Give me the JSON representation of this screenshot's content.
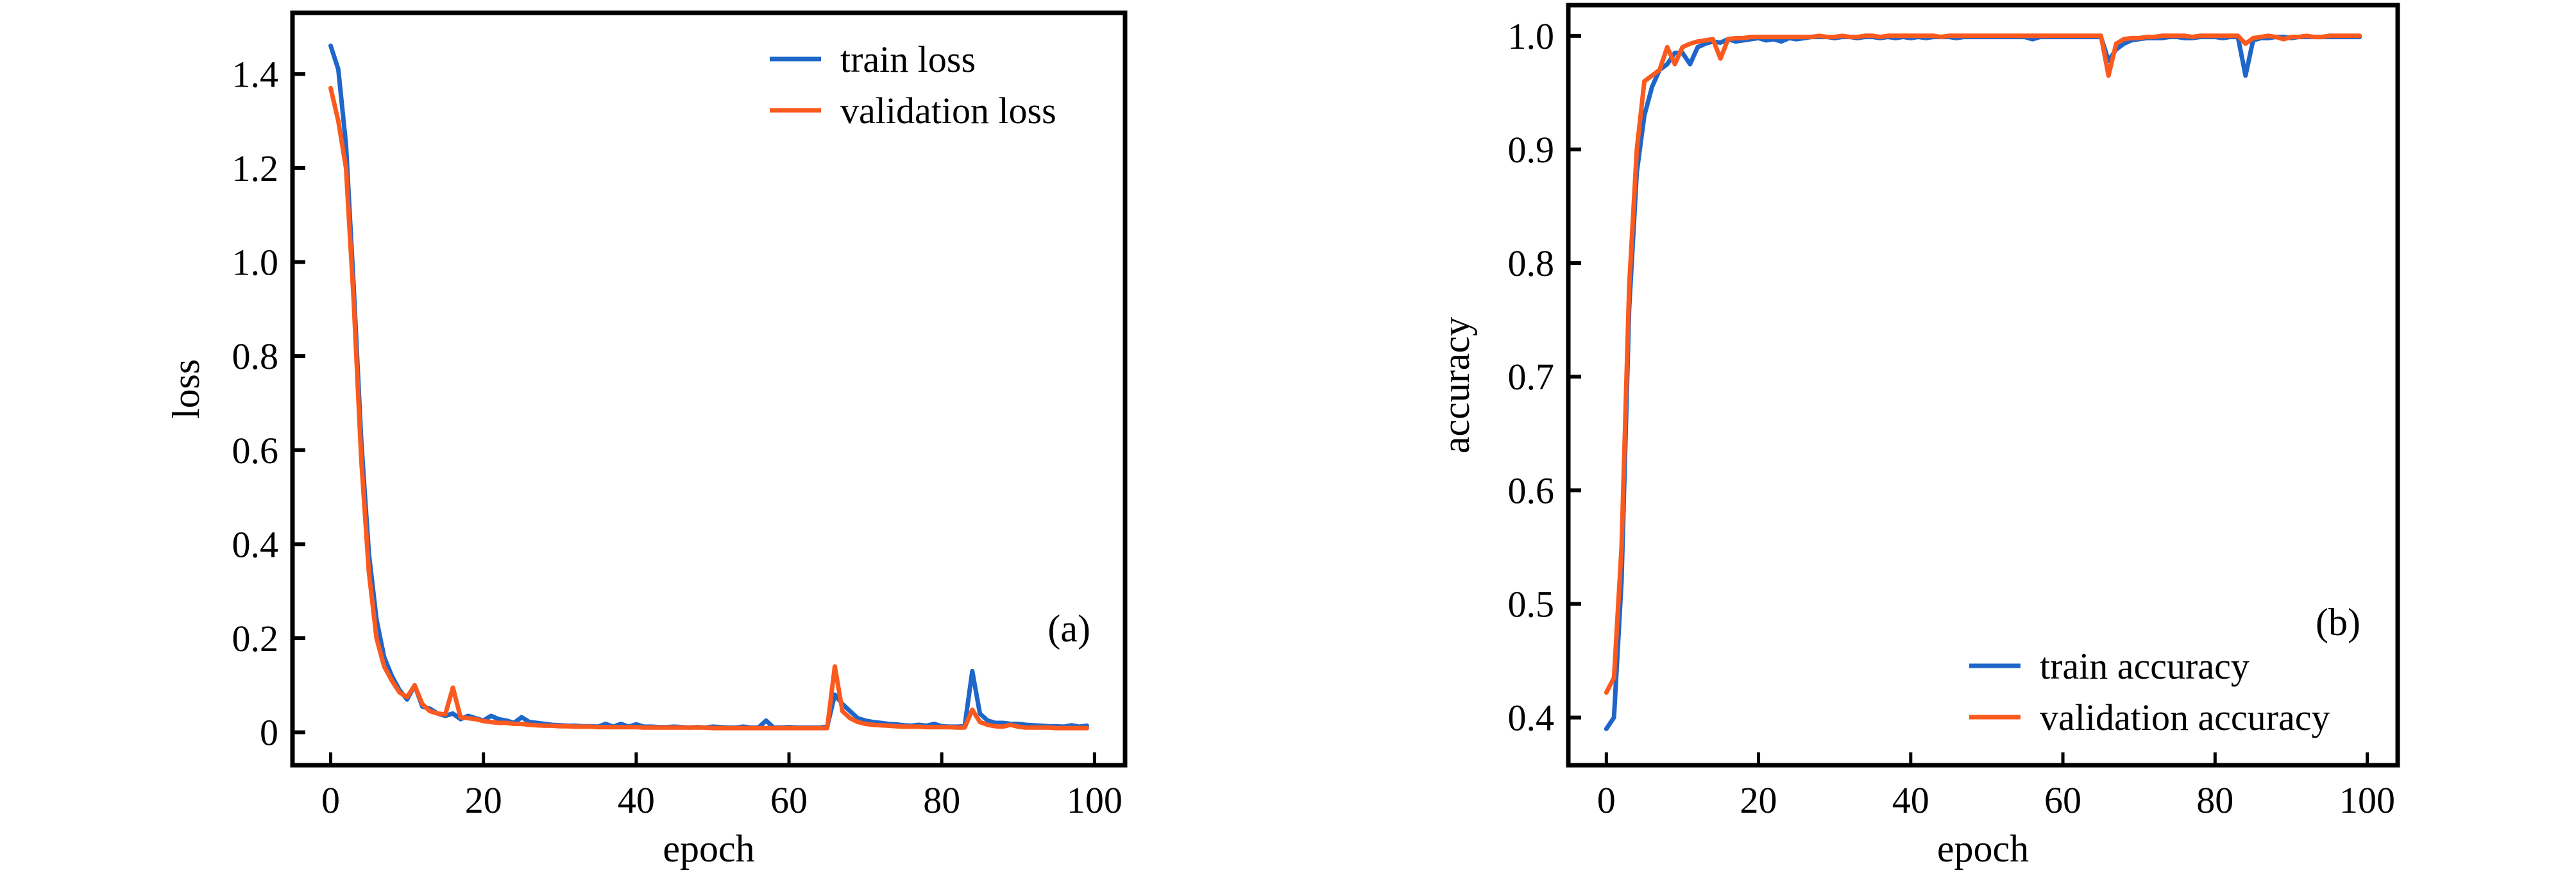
{
  "figure": {
    "panels": [
      "(a)",
      "(b)"
    ]
  },
  "colors": {
    "train": "#1f66c9",
    "validation": "#fb5a1f",
    "axis": "#000000",
    "background": "#ffffff"
  },
  "chart_data": [
    {
      "type": "line",
      "panel_tag": "(a)",
      "title": "",
      "xlabel": "epoch",
      "ylabel": "loss",
      "xlim": [
        -5,
        104
      ],
      "ylim": [
        -0.07,
        1.53
      ],
      "xticks": [
        0,
        20,
        40,
        60,
        80,
        100
      ],
      "xtick_labels": [
        "0",
        "20",
        "40",
        "60",
        "80",
        "100"
      ],
      "yticks": [
        0,
        0.2,
        0.4,
        0.6,
        0.8,
        1.0,
        1.2,
        1.4
      ],
      "ytick_labels": [
        "0",
        "0.2",
        "0.4",
        "0.6",
        "0.8",
        "1.0",
        "1.2",
        "1.4"
      ],
      "grid": false,
      "legend": {
        "position": "top-right",
        "entries": [
          "train loss",
          "validation loss"
        ]
      },
      "x": [
        0,
        1,
        2,
        3,
        4,
        5,
        6,
        7,
        8,
        9,
        10,
        11,
        12,
        13,
        14,
        15,
        16,
        17,
        18,
        19,
        20,
        21,
        22,
        23,
        24,
        25,
        26,
        27,
        28,
        29,
        30,
        31,
        32,
        33,
        34,
        35,
        36,
        37,
        38,
        39,
        40,
        41,
        42,
        43,
        44,
        45,
        46,
        47,
        48,
        49,
        50,
        51,
        52,
        53,
        54,
        55,
        56,
        57,
        58,
        59,
        60,
        61,
        62,
        63,
        64,
        65,
        66,
        67,
        68,
        69,
        70,
        71,
        72,
        73,
        74,
        75,
        76,
        77,
        78,
        79,
        80,
        81,
        82,
        83,
        84,
        85,
        86,
        87,
        88,
        89,
        90,
        91,
        92,
        93,
        94,
        95,
        96,
        97,
        98,
        99
      ],
      "series": [
        {
          "name": "train loss",
          "color_key": "train",
          "values": [
            1.46,
            1.41,
            1.25,
            0.95,
            0.62,
            0.38,
            0.24,
            0.16,
            0.12,
            0.09,
            0.07,
            0.1,
            0.055,
            0.05,
            0.04,
            0.035,
            0.04,
            0.028,
            0.035,
            0.03,
            0.025,
            0.035,
            0.028,
            0.025,
            0.02,
            0.032,
            0.022,
            0.02,
            0.018,
            0.016,
            0.015,
            0.014,
            0.014,
            0.013,
            0.013,
            0.012,
            0.018,
            0.012,
            0.018,
            0.012,
            0.017,
            0.012,
            0.012,
            0.011,
            0.011,
            0.012,
            0.011,
            0.01,
            0.011,
            0.01,
            0.012,
            0.011,
            0.01,
            0.01,
            0.012,
            0.01,
            0.01,
            0.025,
            0.01,
            0.01,
            0.011,
            0.01,
            0.01,
            0.01,
            0.01,
            0.012,
            0.08,
            0.06,
            0.045,
            0.03,
            0.025,
            0.022,
            0.02,
            0.018,
            0.017,
            0.015,
            0.014,
            0.016,
            0.014,
            0.018,
            0.013,
            0.012,
            0.012,
            0.013,
            0.13,
            0.04,
            0.025,
            0.02,
            0.02,
            0.018,
            0.018,
            0.016,
            0.015,
            0.014,
            0.013,
            0.013,
            0.012,
            0.015,
            0.012,
            0.014
          ]
        },
        {
          "name": "validation loss",
          "color_key": "validation",
          "values": [
            1.37,
            1.3,
            1.2,
            0.92,
            0.58,
            0.34,
            0.2,
            0.14,
            0.11,
            0.085,
            0.075,
            0.1,
            0.06,
            0.045,
            0.04,
            0.038,
            0.095,
            0.032,
            0.03,
            0.028,
            0.024,
            0.022,
            0.02,
            0.02,
            0.018,
            0.018,
            0.016,
            0.015,
            0.014,
            0.014,
            0.013,
            0.013,
            0.012,
            0.012,
            0.012,
            0.011,
            0.011,
            0.011,
            0.011,
            0.011,
            0.011,
            0.01,
            0.01,
            0.01,
            0.01,
            0.01,
            0.01,
            0.01,
            0.01,
            0.01,
            0.009,
            0.009,
            0.009,
            0.009,
            0.009,
            0.009,
            0.009,
            0.009,
            0.009,
            0.009,
            0.009,
            0.009,
            0.009,
            0.009,
            0.009,
            0.009,
            0.14,
            0.045,
            0.03,
            0.022,
            0.018,
            0.016,
            0.015,
            0.014,
            0.013,
            0.012,
            0.012,
            0.012,
            0.011,
            0.011,
            0.011,
            0.011,
            0.01,
            0.01,
            0.048,
            0.022,
            0.016,
            0.013,
            0.012,
            0.016,
            0.012,
            0.01,
            0.01,
            0.01,
            0.01,
            0.009,
            0.009,
            0.009,
            0.009,
            0.009
          ]
        }
      ]
    },
    {
      "type": "line",
      "panel_tag": "(b)",
      "title": "",
      "xlabel": "epoch",
      "ylabel": "accuracy",
      "xlim": [
        -5,
        104
      ],
      "ylim": [
        0.358,
        1.027
      ],
      "xticks": [
        0,
        20,
        40,
        60,
        80,
        100
      ],
      "xtick_labels": [
        "0",
        "20",
        "40",
        "60",
        "80",
        "100"
      ],
      "yticks": [
        0.4,
        0.5,
        0.6,
        0.7,
        0.8,
        0.9,
        1.0
      ],
      "ytick_labels": [
        "0.4",
        "0.5",
        "0.6",
        "0.7",
        "0.8",
        "0.9",
        "1.0"
      ],
      "grid": false,
      "legend": {
        "position": "bottom-right",
        "entries": [
          "train accuracy",
          "validation accuracy"
        ]
      },
      "x": [
        0,
        1,
        2,
        3,
        4,
        5,
        6,
        7,
        8,
        9,
        10,
        11,
        12,
        13,
        14,
        15,
        16,
        17,
        18,
        19,
        20,
        21,
        22,
        23,
        24,
        25,
        26,
        27,
        28,
        29,
        30,
        31,
        32,
        33,
        34,
        35,
        36,
        37,
        38,
        39,
        40,
        41,
        42,
        43,
        44,
        45,
        46,
        47,
        48,
        49,
        50,
        51,
        52,
        53,
        54,
        55,
        56,
        57,
        58,
        59,
        60,
        61,
        62,
        63,
        64,
        65,
        66,
        67,
        68,
        69,
        70,
        71,
        72,
        73,
        74,
        75,
        76,
        77,
        78,
        79,
        80,
        81,
        82,
        83,
        84,
        85,
        86,
        87,
        88,
        89,
        90,
        91,
        92,
        93,
        94,
        95,
        96,
        97,
        98,
        99
      ],
      "series": [
        {
          "name": "train accuracy",
          "color_key": "train",
          "values": [
            0.39,
            0.4,
            0.52,
            0.76,
            0.88,
            0.93,
            0.955,
            0.97,
            0.975,
            0.985,
            0.985,
            0.975,
            0.99,
            0.993,
            0.995,
            0.994,
            0.997,
            0.995,
            0.996,
            0.997,
            0.998,
            0.996,
            0.997,
            0.995,
            0.998,
            0.997,
            0.998,
            0.999,
            0.999,
            0.999,
            0.998,
            0.999,
            0.999,
            0.998,
            0.999,
            0.999,
            0.998,
            0.999,
            0.998,
            0.999,
            0.998,
            0.999,
            0.998,
            0.999,
            0.999,
            0.999,
            0.998,
            0.999,
            0.999,
            0.999,
            0.999,
            0.999,
            0.999,
            0.999,
            0.999,
            0.999,
            0.997,
            0.999,
            0.999,
            0.999,
            0.999,
            0.999,
            0.999,
            0.999,
            0.999,
            0.999,
            0.978,
            0.988,
            0.993,
            0.996,
            0.997,
            0.998,
            0.998,
            0.998,
            0.999,
            0.999,
            0.998,
            0.998,
            0.999,
            0.999,
            0.999,
            0.998,
            0.999,
            0.999,
            0.965,
            0.996,
            0.998,
            0.998,
            0.999,
            0.999,
            0.998,
            0.999,
            0.999,
            0.999,
            0.999,
            0.999,
            0.999,
            0.999,
            0.999,
            0.999
          ]
        },
        {
          "name": "validation accuracy",
          "color_key": "validation",
          "values": [
            0.422,
            0.435,
            0.55,
            0.78,
            0.9,
            0.96,
            0.965,
            0.97,
            0.99,
            0.975,
            0.99,
            0.993,
            0.995,
            0.996,
            0.997,
            0.98,
            0.997,
            0.998,
            0.998,
            0.999,
            0.999,
            0.999,
            0.999,
            0.999,
            0.999,
            0.999,
            0.999,
            0.999,
            1.0,
            0.999,
            0.999,
            1.0,
            0.999,
            0.999,
            1.0,
            1.0,
            0.999,
            1.0,
            1.0,
            1.0,
            1.0,
            1.0,
            1.0,
            1.0,
            0.999,
            1.0,
            1.0,
            1.0,
            1.0,
            1.0,
            1.0,
            1.0,
            1.0,
            1.0,
            1.0,
            1.0,
            1.0,
            1.0,
            1.0,
            1.0,
            1.0,
            1.0,
            1.0,
            1.0,
            1.0,
            1.0,
            0.965,
            0.993,
            0.997,
            0.998,
            0.998,
            0.999,
            0.999,
            1.0,
            1.0,
            1.0,
            1.0,
            0.999,
            1.0,
            1.0,
            1.0,
            1.0,
            1.0,
            1.0,
            0.993,
            0.998,
            0.999,
            1.0,
            0.999,
            0.997,
            0.999,
            0.999,
            1.0,
            0.999,
            0.999,
            1.0,
            1.0,
            1.0,
            1.0,
            1.0
          ]
        }
      ]
    }
  ]
}
